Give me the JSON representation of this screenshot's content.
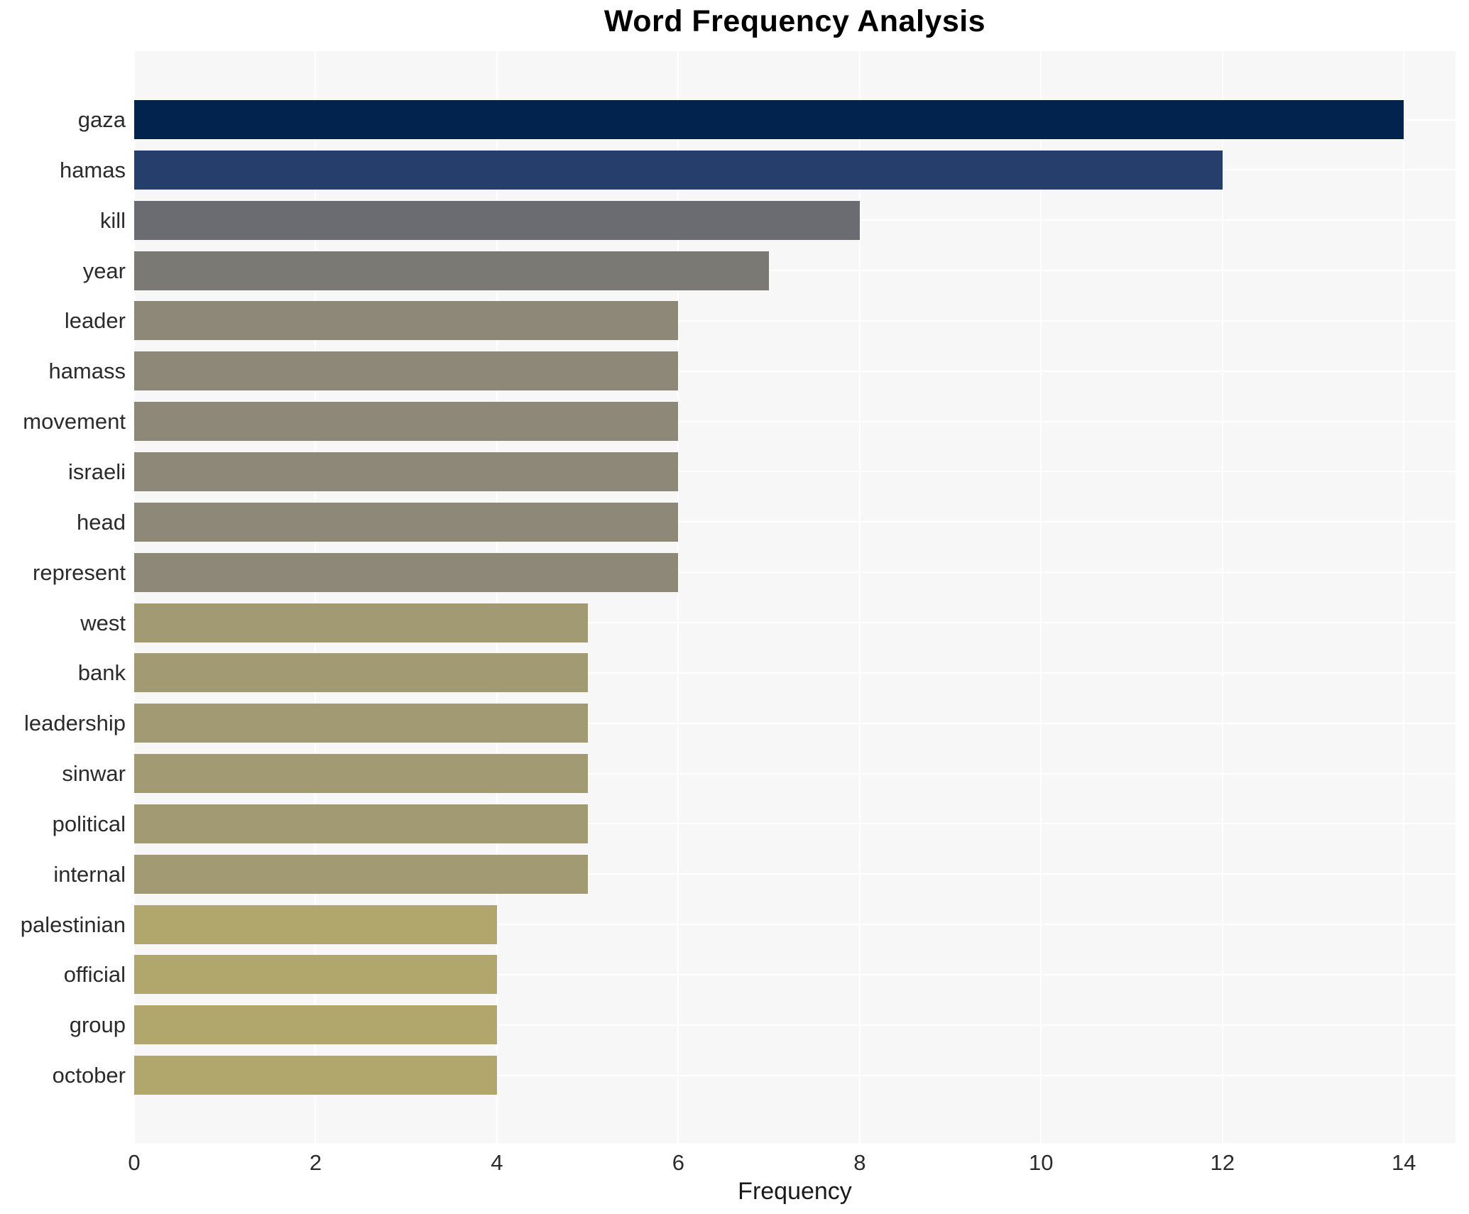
{
  "chart_data": {
    "type": "bar",
    "orientation": "horizontal",
    "title": "Word Frequency Analysis",
    "xlabel": "Frequency",
    "ylabel": "",
    "categories": [
      "gaza",
      "hamas",
      "kill",
      "year",
      "leader",
      "hamass",
      "movement",
      "israeli",
      "head",
      "represent",
      "west",
      "bank",
      "leadership",
      "sinwar",
      "political",
      "internal",
      "palestinian",
      "official",
      "group",
      "october"
    ],
    "values": [
      14,
      12,
      8,
      7,
      6,
      6,
      6,
      6,
      6,
      6,
      5,
      5,
      5,
      5,
      5,
      5,
      4,
      4,
      4,
      4
    ],
    "bar_colors": [
      "#02234e",
      "#253e6c",
      "#6b6c71",
      "#7b7973",
      "#8e8878",
      "#8e8878",
      "#8e8878",
      "#8e8878",
      "#8e8878",
      "#8e8878",
      "#a29a73",
      "#a29a73",
      "#a29a73",
      "#a29a73",
      "#a29a73",
      "#a29a73",
      "#b1a76c",
      "#b1a76c",
      "#b1a76c",
      "#b1a76c"
    ],
    "x_ticks": [
      0,
      2,
      4,
      6,
      8,
      10,
      12,
      14
    ],
    "xlim": [
      0,
      14.57
    ],
    "grid": true,
    "legend_position": "none",
    "colors": {
      "figure_background": "#ffffff",
      "plot_background": "#f7f7f8",
      "gridline": "#ffffff",
      "tick_label": "#2b2b2b",
      "title": "#000000"
    }
  }
}
